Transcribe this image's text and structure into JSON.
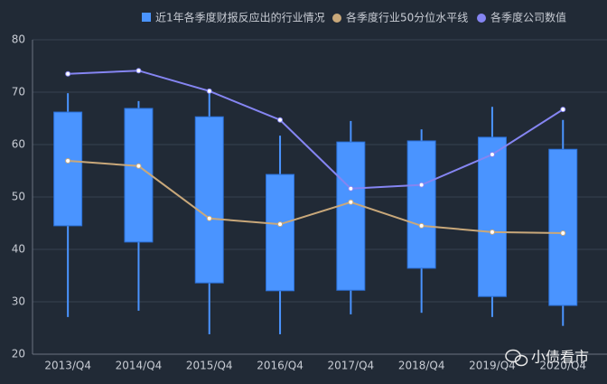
{
  "chart_data": {
    "type": "boxplot",
    "categories": [
      "2013/Q4",
      "2014/Q4",
      "2015/Q4",
      "2016/Q4",
      "2017/Q4",
      "2018/Q4",
      "2019/Q4",
      "2020/Q4"
    ],
    "boxes": {
      "name": "近1年各季度财报反应出的行业情况",
      "color": "#4a94ff",
      "low": [
        27.1,
        28.3,
        23.8,
        23.8,
        27.6,
        27.9,
        27.1,
        25.4
      ],
      "q1": [
        44.5,
        41.4,
        33.6,
        32.1,
        32.2,
        36.4,
        31.0,
        29.3
      ],
      "q3": [
        66.2,
        66.9,
        65.3,
        54.3,
        60.5,
        60.7,
        61.4,
        59.1
      ],
      "high": [
        69.8,
        68.3,
        70.0,
        61.7,
        64.5,
        62.9,
        67.2,
        64.7
      ]
    },
    "series": [
      {
        "name": "各季度行业50分位水平线",
        "color": "#c9a87a",
        "values": [
          56.9,
          55.9,
          45.9,
          44.8,
          49.0,
          44.5,
          43.3,
          43.1
        ]
      },
      {
        "name": "各季度公司数值",
        "color": "#8585f2",
        "values": [
          73.5,
          74.1,
          70.2,
          64.7,
          51.6,
          52.3,
          58.1,
          66.7
        ]
      }
    ],
    "ylim": [
      20,
      80
    ],
    "yticks": [
      20,
      30,
      40,
      50,
      60,
      70,
      80
    ],
    "grid": true,
    "watermark": "小债看市"
  }
}
